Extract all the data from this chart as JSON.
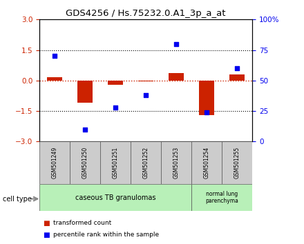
{
  "title": "GDS4256 / Hs.75232.0.A1_3p_a_at",
  "samples": [
    "GSM501249",
    "GSM501250",
    "GSM501251",
    "GSM501252",
    "GSM501253",
    "GSM501254",
    "GSM501255"
  ],
  "red_values": [
    0.15,
    -1.1,
    -0.2,
    -0.05,
    0.35,
    -1.7,
    0.3
  ],
  "blue_values": [
    70,
    10,
    28,
    38,
    80,
    24,
    60
  ],
  "ylim_left": [
    -3,
    3
  ],
  "ylim_right": [
    0,
    100
  ],
  "left_yticks": [
    -3,
    -1.5,
    0,
    1.5,
    3
  ],
  "right_yticks": [
    0,
    25,
    50,
    75,
    100
  ],
  "right_yticklabels": [
    "0",
    "25",
    "50",
    "75",
    "100%"
  ],
  "group1_label": "caseous TB granulomas",
  "group2_label": "normal lung\nparenchyma",
  "group1_count": 5,
  "group2_count": 2,
  "cell_type_label": "cell type",
  "legend1_label": "transformed count",
  "legend2_label": "percentile rank within the sample",
  "red_color": "#cc2200",
  "blue_color": "#0000ee",
  "group_bg": "#b8f0b8",
  "sample_bg": "#cccccc",
  "bar_width": 0.5,
  "figsize": [
    4.4,
    3.54
  ],
  "dpi": 100
}
